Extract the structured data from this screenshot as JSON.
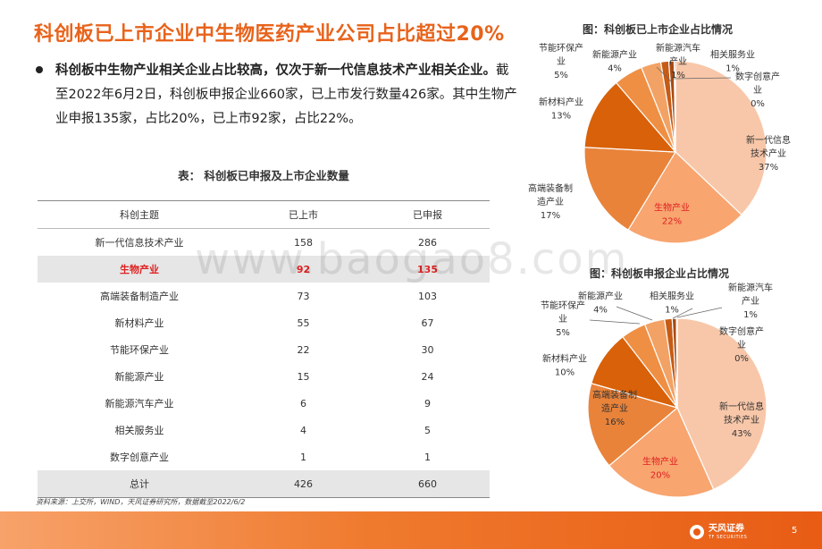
{
  "page": {
    "title": "科创板已上市企业中生物医药产业公司占比超过20%",
    "bullet_bold": "科创板中生物产业相关企业占比较高，仅次于新一代信息技术产业相关企业。",
    "bullet_rest": "截至2022年6月2日，科创板申报企业660家，已上市发行数量426家。其中生物产业申报135家，占比20%，已上市92家，占比22%。",
    "table_caption": "表： 科创板已申报及上市企业数量",
    "source": "资料来源：上交所，WIND，天风证券研究所，数据截至2022/6/2",
    "watermark": "www.baogao8.com",
    "logo_cn": "天风证券",
    "logo_en": "TF SECURITIES",
    "page_number": "5"
  },
  "colors": {
    "accent": "#e8631b",
    "highlight": "#e02020",
    "slices": {
      "新一代信息技术产业": "#f8c7a9",
      "生物产业": "#f8a570",
      "高端装备制造产业": "#e9833a",
      "新材料产业": "#d86109",
      "节能环保产业": "#ef8f44",
      "新能源产业": "#f2a264",
      "新能源汽车产业": "#c65b16",
      "相关服务业": "#a94a12",
      "数字创意产业": "#8c3b0c"
    }
  },
  "table": {
    "headers": [
      "科创主题",
      "已上市",
      "已申报"
    ],
    "rows": [
      [
        "新一代信息技术产业",
        "158",
        "286"
      ],
      [
        "生物产业",
        "92",
        "135"
      ],
      [
        "高端装备制造产业",
        "73",
        "103"
      ],
      [
        "新材料产业",
        "55",
        "67"
      ],
      [
        "节能环保产业",
        "22",
        "30"
      ],
      [
        "新能源产业",
        "15",
        "24"
      ],
      [
        "新能源汽车产业",
        "6",
        "9"
      ],
      [
        "相关服务业",
        "4",
        "5"
      ],
      [
        "数字创意产业",
        "1",
        "1"
      ]
    ],
    "total": [
      "总计",
      "426",
      "660"
    ]
  },
  "chart_data": [
    {
      "type": "pie",
      "title": "图：科创板已上市企业占比情况",
      "labels": [
        "新一代信息技术产业",
        "生物产业",
        "高端装备制造产业",
        "新材料产业",
        "节能环保产业",
        "新能源产业",
        "新能源汽车产业",
        "相关服务业",
        "数字创意产业"
      ],
      "values": [
        158,
        92,
        73,
        55,
        22,
        15,
        6,
        4,
        1
      ],
      "label_texts": [
        [
          "新一代信息",
          "技术产业",
          "37%"
        ],
        [
          "生物产业",
          "22%"
        ],
        [
          "高端装备制",
          "造产业",
          "17%"
        ],
        [
          "新材料产业",
          "13%"
        ],
        [
          "节能环保产",
          "业",
          "5%"
        ],
        [
          "新能源产业",
          "4%"
        ],
        [
          "新能源汽车",
          "产业",
          "1%"
        ],
        [
          "相关服务业",
          "1%"
        ],
        [
          "数字创意产",
          "业",
          "0%"
        ]
      ]
    },
    {
      "type": "pie",
      "title": "图：科创板申报企业占比情况",
      "labels": [
        "新一代信息技术产业",
        "生物产业",
        "高端装备制造产业",
        "新材料产业",
        "节能环保产业",
        "新能源产业",
        "新能源汽车产业",
        "相关服务业",
        "数字创意产业"
      ],
      "values": [
        286,
        135,
        103,
        67,
        30,
        24,
        9,
        5,
        1
      ],
      "label_texts": [
        [
          "新一代信息",
          "技术产业",
          "43%"
        ],
        [
          "生物产业",
          "20%"
        ],
        [
          "高端装备制",
          "造产业",
          "16%"
        ],
        [
          "新材料产业",
          "10%"
        ],
        [
          "节能环保产",
          "业",
          "5%"
        ],
        [
          "新能源产业",
          "4%"
        ],
        [
          "新能源汽车",
          "产业",
          "1%"
        ],
        [
          "相关服务业",
          "1%"
        ],
        [
          "数字创意产",
          "业",
          "0%"
        ]
      ]
    }
  ]
}
